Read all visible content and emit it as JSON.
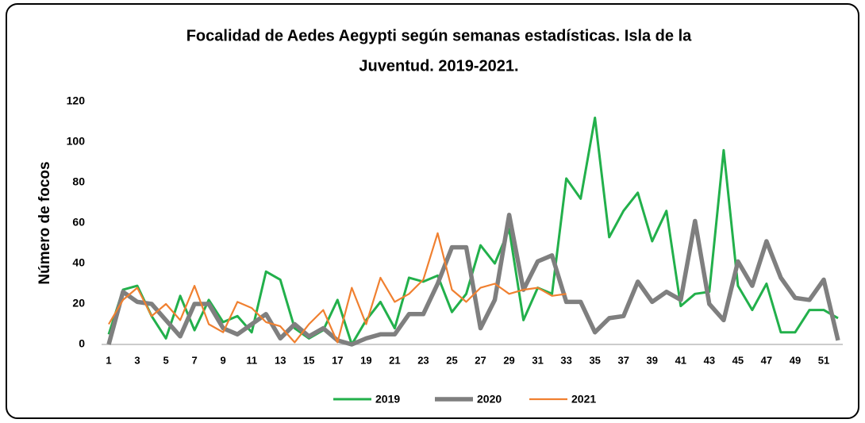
{
  "chart_data": {
    "type": "line",
    "title": [
      "Focalidad de Aedes Aegypti según semanas estadísticas. Isla de la",
      "Juventud. 2019-2021."
    ],
    "y_label": "Número de focos",
    "categories": [
      1,
      null,
      3,
      null,
      5,
      null,
      7,
      null,
      9,
      null,
      11,
      null,
      13,
      null,
      15,
      null,
      17,
      null,
      19,
      null,
      21,
      null,
      23,
      null,
      25,
      null,
      27,
      null,
      29,
      null,
      31,
      null,
      33,
      null,
      35,
      null,
      37,
      null,
      39,
      null,
      41,
      null,
      43,
      null,
      45,
      null,
      47,
      null,
      49,
      null,
      51,
      null
    ],
    "series": [
      {
        "name": "2019",
        "color": "#22b04b",
        "values": [
          5,
          27,
          29,
          14,
          3,
          24,
          7,
          22,
          11,
          14,
          6,
          36,
          32,
          8,
          3,
          7,
          22,
          0,
          12,
          21,
          8,
          33,
          31,
          34,
          16,
          25,
          49,
          40,
          57,
          12,
          28,
          25,
          82,
          72,
          112,
          53,
          66,
          75,
          51,
          66,
          19,
          25,
          26,
          96,
          29,
          17,
          30,
          6,
          6,
          17,
          17,
          13
        ]
      },
      {
        "name": "2020",
        "color": "#7f7f7f",
        "values": [
          0,
          26,
          21,
          20,
          12,
          4,
          20,
          20,
          8,
          5,
          10,
          15,
          3,
          10,
          4,
          8,
          2,
          0,
          3,
          5,
          5,
          15,
          15,
          30,
          48,
          48,
          8,
          22,
          64,
          27,
          41,
          44,
          21,
          21,
          6,
          13,
          14,
          31,
          21,
          26,
          22,
          61,
          20,
          12,
          41,
          29,
          51,
          33,
          23,
          22,
          32,
          2
        ]
      },
      {
        "name": "2021",
        "color": "#f08030",
        "values": [
          10,
          22,
          28,
          14,
          20,
          12,
          29,
          10,
          6,
          21,
          18,
          11,
          9,
          1,
          10,
          17,
          1,
          28,
          10,
          33,
          21,
          25,
          32,
          55,
          27,
          21,
          28,
          30,
          25,
          27,
          28,
          24,
          25,
          null,
          null,
          null,
          null,
          null,
          null,
          null,
          null,
          null,
          null,
          null,
          null,
          null,
          null,
          null,
          null,
          null,
          null,
          null
        ]
      }
    ],
    "ylim": [
      0,
      120
    ],
    "yticks": [
      0,
      20,
      40,
      60,
      80,
      100,
      120
    ],
    "grid": false,
    "legend": "bottom"
  }
}
